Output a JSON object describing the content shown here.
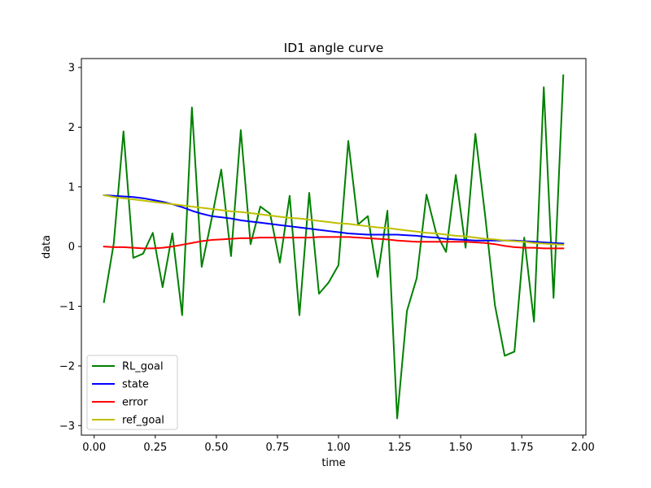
{
  "chart_data": {
    "type": "line",
    "title": "ID1 angle curve",
    "xlabel": "time",
    "ylabel": "data",
    "xlim": [
      -0.0524,
      2.0124
    ],
    "ylim": [
      -3.16,
      3.15
    ],
    "xticks": [
      0.0,
      0.25,
      0.5,
      0.75,
      1.0,
      1.25,
      1.5,
      1.75,
      2.0
    ],
    "xtick_labels": [
      "0.00",
      "0.25",
      "0.50",
      "0.75",
      "1.00",
      "1.25",
      "1.50",
      "1.75",
      "2.00"
    ],
    "yticks": [
      -3,
      -2,
      -1,
      0,
      1,
      2,
      3
    ],
    "ytick_labels": [
      "−3",
      "−2",
      "−1",
      "0",
      "1",
      "2",
      "3"
    ],
    "grid": false,
    "legend_position": "lower-left",
    "x": [
      0.04,
      0.08,
      0.12,
      0.16,
      0.2,
      0.24,
      0.28,
      0.32,
      0.36,
      0.4,
      0.44,
      0.48,
      0.52,
      0.56,
      0.6,
      0.64,
      0.68,
      0.72,
      0.76,
      0.8,
      0.84,
      0.88,
      0.92,
      0.96,
      1.0,
      1.04,
      1.08,
      1.12,
      1.16,
      1.2,
      1.24,
      1.28,
      1.32,
      1.36,
      1.4,
      1.44,
      1.48,
      1.52,
      1.56,
      1.6,
      1.64,
      1.68,
      1.72,
      1.76,
      1.8,
      1.84,
      1.88,
      1.92
    ],
    "series": [
      {
        "name": "RL_goal",
        "color": "#008000",
        "values": [
          -0.93,
          0.05,
          1.93,
          -0.19,
          -0.12,
          0.23,
          -0.68,
          0.22,
          -1.15,
          2.33,
          -0.34,
          0.45,
          1.29,
          -0.16,
          1.95,
          0.04,
          0.67,
          0.55,
          -0.27,
          0.85,
          -1.15,
          0.9,
          -0.79,
          -0.6,
          -0.31,
          1.77,
          0.37,
          0.51,
          -0.51,
          0.6,
          -2.88,
          -1.08,
          -0.53,
          0.87,
          0.22,
          -0.09,
          1.2,
          -0.02,
          1.89,
          0.52,
          -0.98,
          -1.83,
          -1.76,
          0.15,
          -1.26,
          2.67,
          -0.86,
          2.87
        ]
      },
      {
        "name": "state",
        "color": "#0000ff",
        "values": [
          0.86,
          0.85,
          0.84,
          0.83,
          0.81,
          0.78,
          0.75,
          0.71,
          0.66,
          0.6,
          0.55,
          0.51,
          0.49,
          0.47,
          0.44,
          0.42,
          0.4,
          0.38,
          0.36,
          0.34,
          0.32,
          0.3,
          0.28,
          0.26,
          0.24,
          0.22,
          0.21,
          0.2,
          0.2,
          0.2,
          0.2,
          0.19,
          0.18,
          0.16,
          0.15,
          0.13,
          0.12,
          0.11,
          0.1,
          0.1,
          0.1,
          0.1,
          0.1,
          0.09,
          0.08,
          0.07,
          0.06,
          0.05
        ]
      },
      {
        "name": "error",
        "color": "#ff0000",
        "values": [
          0.0,
          -0.01,
          -0.01,
          -0.02,
          -0.03,
          -0.03,
          -0.02,
          0.0,
          0.03,
          0.06,
          0.09,
          0.11,
          0.12,
          0.13,
          0.14,
          0.14,
          0.15,
          0.15,
          0.15,
          0.15,
          0.15,
          0.15,
          0.16,
          0.16,
          0.16,
          0.16,
          0.15,
          0.14,
          0.13,
          0.12,
          0.1,
          0.09,
          0.08,
          0.08,
          0.08,
          0.08,
          0.08,
          0.08,
          0.07,
          0.06,
          0.04,
          0.01,
          -0.01,
          -0.02,
          -0.02,
          -0.03,
          -0.03,
          -0.03
        ]
      },
      {
        "name": "ref_goal",
        "color": "#bfbf00",
        "values": [
          0.86,
          0.83,
          0.81,
          0.79,
          0.77,
          0.75,
          0.73,
          0.71,
          0.69,
          0.67,
          0.65,
          0.63,
          0.61,
          0.59,
          0.58,
          0.56,
          0.54,
          0.52,
          0.5,
          0.48,
          0.47,
          0.45,
          0.43,
          0.41,
          0.39,
          0.38,
          0.36,
          0.34,
          0.32,
          0.31,
          0.29,
          0.27,
          0.25,
          0.23,
          0.22,
          0.2,
          0.18,
          0.17,
          0.15,
          0.13,
          0.12,
          0.1,
          0.09,
          0.08,
          0.06,
          0.05,
          0.04,
          0.03
        ]
      }
    ]
  }
}
